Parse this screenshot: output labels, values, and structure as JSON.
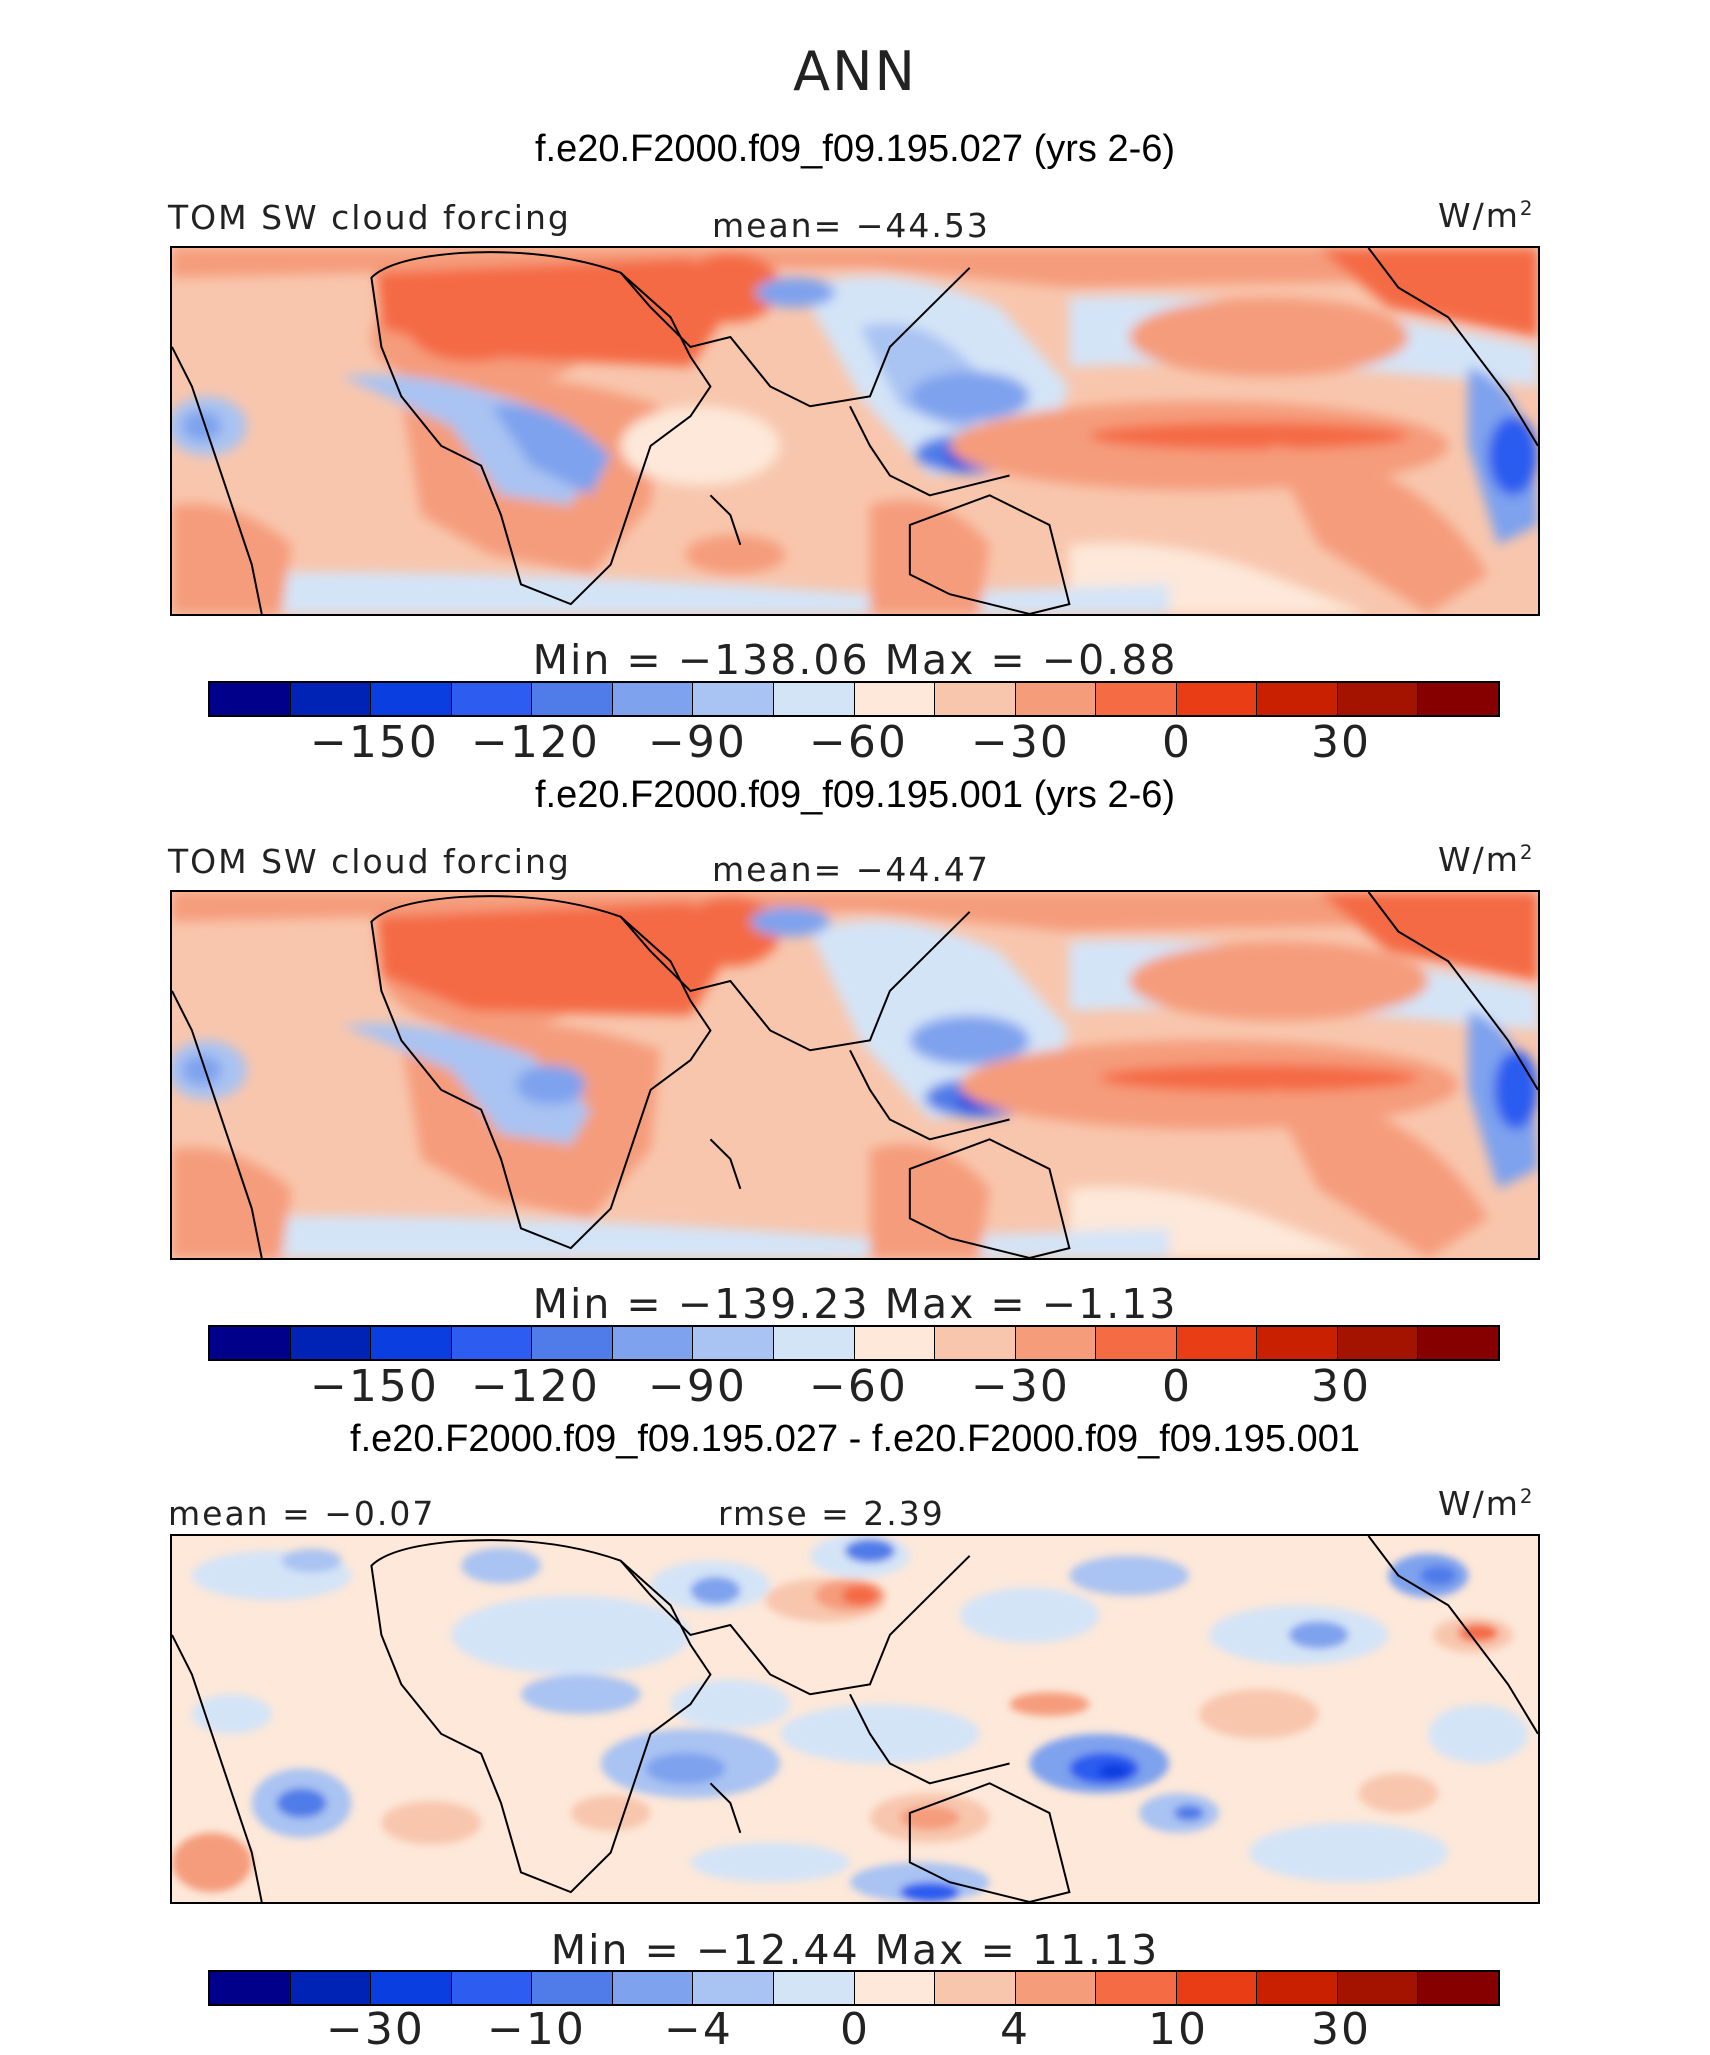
{
  "title": "ANN",
  "units_text": "W/m",
  "units_sup": "2",
  "palette": [
    "#00008b",
    "#0022b5",
    "#0b3ee0",
    "#2c5cf0",
    "#4f7ce8",
    "#7ea2ee",
    "#a9c3f2",
    "#d4e4f7",
    "#fde8d9",
    "#f8c6ad",
    "#f59c7b",
    "#f46b44",
    "#e93e15",
    "#c82000",
    "#a41300",
    "#870000"
  ],
  "panels": [
    {
      "case_title": "f.e20.F2000.f09_f09.195.027 (yrs 2-6)",
      "left_label": "TOM SW cloud forcing",
      "center_label": "mean= −44.53",
      "min_max": "Min = −138.06 Max = −0.88",
      "ticks": [
        "−150",
        "−120",
        "−90",
        "−60",
        "−30",
        "0",
        "30"
      ],
      "icon": "map-field-icon"
    },
    {
      "case_title": "f.e20.F2000.f09_f09.195.001 (yrs 2-6)",
      "left_label": "TOM SW cloud forcing",
      "center_label": "mean= −44.47",
      "min_max": "Min = −139.23 Max = −1.13",
      "ticks": [
        "−150",
        "−120",
        "−90",
        "−60",
        "−30",
        "0",
        "30"
      ],
      "icon": "map-field-icon"
    },
    {
      "case_title": "f.e20.F2000.f09_f09.195.027 - f.e20.F2000.f09_f09.195.001",
      "left_label": "mean = −0.07",
      "center_label": "rmse = 2.39",
      "min_max": "Min = −12.44 Max = 11.13",
      "ticks": [
        "−30",
        "−10",
        "−4",
        "0",
        "4",
        "10",
        "30"
      ],
      "icon": "map-difference-icon"
    }
  ]
}
